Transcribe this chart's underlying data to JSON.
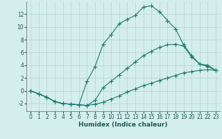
{
  "xlabel": "Humidex (Indice chaleur)",
  "background_color": "#d4eeed",
  "grid_color": "#b8d8d4",
  "line_color": "#1a7a6e",
  "xlim": [
    -0.5,
    23.5
  ],
  "ylim": [
    -3.2,
    14.0
  ],
  "xticks": [
    0,
    1,
    2,
    3,
    4,
    5,
    6,
    7,
    8,
    9,
    10,
    11,
    12,
    13,
    14,
    15,
    16,
    17,
    18,
    19,
    20,
    21,
    22,
    23
  ],
  "yticks": [
    -2,
    0,
    2,
    4,
    6,
    8,
    10,
    12
  ],
  "series": [
    {
      "x": [
        0,
        1,
        2,
        3,
        4,
        5,
        6,
        7,
        8,
        9,
        10,
        11,
        12,
        13,
        14,
        15,
        16,
        17,
        18,
        19,
        20,
        21,
        22,
        23
      ],
      "y": [
        0.0,
        -0.5,
        -1.0,
        -1.7,
        -2.0,
        -2.1,
        -2.2,
        -2.3,
        -2.1,
        -1.8,
        -1.3,
        -0.8,
        -0.2,
        0.3,
        0.8,
        1.2,
        1.6,
        2.0,
        2.4,
        2.8,
        3.0,
        3.2,
        3.3,
        3.2
      ]
    },
    {
      "x": [
        0,
        1,
        2,
        3,
        4,
        5,
        6,
        7,
        8,
        9,
        10,
        11,
        12,
        13,
        14,
        15,
        16,
        17,
        18,
        19,
        20,
        21,
        22,
        23
      ],
      "y": [
        0.0,
        -0.5,
        -1.0,
        -1.7,
        -2.0,
        -2.1,
        -2.2,
        1.5,
        3.8,
        7.3,
        8.8,
        10.5,
        11.2,
        11.8,
        13.1,
        13.3,
        12.4,
        11.0,
        9.7,
        7.2,
        5.5,
        4.2,
        4.0,
        3.2
      ]
    },
    {
      "x": [
        0,
        1,
        2,
        3,
        4,
        5,
        6,
        7,
        8,
        9,
        10,
        11,
        12,
        13,
        14,
        15,
        16,
        17,
        18,
        19,
        20,
        21,
        22,
        23
      ],
      "y": [
        0.0,
        -0.5,
        -1.0,
        -1.7,
        -2.0,
        -2.1,
        -2.2,
        -2.3,
        -1.5,
        0.5,
        1.5,
        2.5,
        3.5,
        4.5,
        5.5,
        6.2,
        6.8,
        7.2,
        7.3,
        7.0,
        5.3,
        4.2,
        3.8,
        3.2
      ]
    }
  ]
}
